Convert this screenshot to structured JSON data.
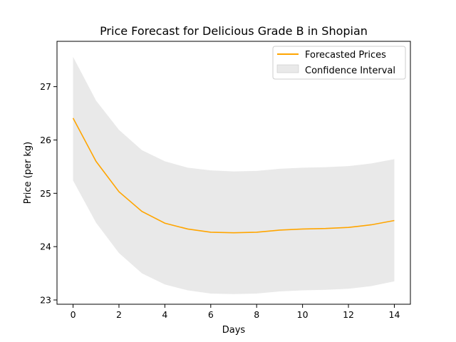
{
  "chart_data": {
    "type": "line",
    "title": "Price Forecast for Delicious Grade B in Shopian",
    "xlabel": "Days",
    "ylabel": "Price (per kg)",
    "xlim": [
      -0.7,
      14.7
    ],
    "ylim": [
      22.92,
      27.85
    ],
    "xticks": [
      0,
      2,
      4,
      6,
      8,
      10,
      12,
      14
    ],
    "yticks": [
      23,
      24,
      25,
      26,
      27
    ],
    "legend_placement": "top-right",
    "x": [
      0,
      1,
      2,
      3,
      4,
      5,
      6,
      7,
      8,
      9,
      10,
      11,
      12,
      13,
      14
    ],
    "series": [
      {
        "name": "Forecasted Prices",
        "kind": "line",
        "color": "#ffa500",
        "values": [
          26.41,
          25.6,
          25.03,
          24.66,
          24.44,
          24.33,
          24.27,
          24.26,
          24.27,
          24.31,
          24.33,
          24.34,
          24.36,
          24.41,
          24.49
        ]
      },
      {
        "name": "Confidence Interval",
        "kind": "band",
        "color": "#d3d3d3",
        "lower": [
          25.24,
          24.45,
          23.88,
          23.5,
          23.29,
          23.18,
          23.12,
          23.11,
          23.12,
          23.16,
          23.18,
          23.19,
          23.21,
          23.26,
          23.35
        ],
        "upper": [
          27.56,
          26.74,
          26.19,
          25.81,
          25.6,
          25.48,
          25.43,
          25.41,
          25.42,
          25.46,
          25.48,
          25.49,
          25.51,
          25.56,
          25.64
        ]
      }
    ]
  }
}
